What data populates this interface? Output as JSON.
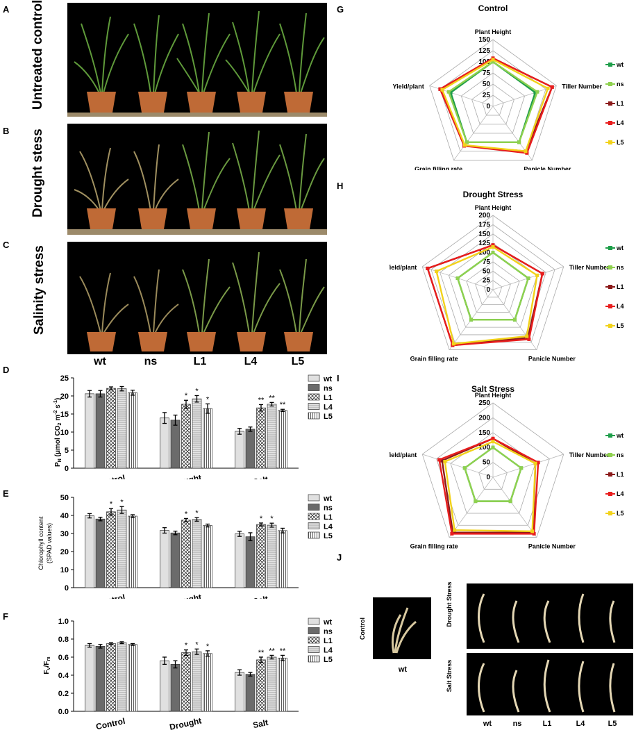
{
  "panels": {
    "A": "A",
    "B": "B",
    "C": "C",
    "D": "D",
    "E": "E",
    "F": "F",
    "G": "G",
    "H": "H",
    "I": "I",
    "J": "J"
  },
  "photos": {
    "A_title": "Untreated control",
    "B_title": "Drought stess",
    "C_title": "Salinity stress",
    "genotypes": [
      "wt",
      "ns",
      "L1",
      "L4",
      "L5"
    ]
  },
  "panel_j": {
    "control_title": "Control",
    "control_label": "wt",
    "drought_title": "Drought Stress",
    "salt_title": "Salt Stress",
    "genotypes": [
      "wt",
      "ns",
      "L1",
      "L4",
      "L5"
    ]
  },
  "colors": {
    "wt": "#1f9e4a",
    "ns": "#8fd14f",
    "L1": "#8b1a1a",
    "L4": "#e81d1d",
    "L5": "#f2d21a"
  },
  "chart_data": [
    {
      "id": "D",
      "type": "bar",
      "ylabel": "PN (μmol CO2 m-2 s-1)",
      "ylabel_parts": {
        "P": "P",
        "N": "N",
        "rest": " (μmol CO",
        "two": "2",
        "m": " m",
        "e1": "-2",
        "s": " s",
        "e2": "-1",
        "close": ")"
      },
      "ylim": [
        0,
        25
      ],
      "yticks": [
        "0",
        "5",
        "10",
        "15",
        "20",
        "25"
      ],
      "categories": [
        "Control",
        "Drought",
        "Salt"
      ],
      "series": [
        {
          "name": "wt",
          "values": [
            20.6,
            13.9,
            10.2
          ],
          "errors": [
            0.9,
            1.5,
            0.8
          ]
        },
        {
          "name": "ns",
          "values": [
            20.6,
            13.3,
            10.8
          ],
          "errors": [
            0.9,
            1.4,
            0.6
          ]
        },
        {
          "name": "L1",
          "values": [
            22.1,
            17.7,
            16.7
          ],
          "errors": [
            0.4,
            1.1,
            0.9
          ]
        },
        {
          "name": "L4",
          "values": [
            22.0,
            19.2,
            17.7
          ],
          "errors": [
            0.6,
            0.9,
            0.5
          ]
        },
        {
          "name": "L5",
          "values": [
            20.9,
            16.5,
            16.0
          ],
          "errors": [
            0.7,
            1.3,
            0.3
          ]
        }
      ],
      "stars": [
        [
          "",
          "",
          "",
          "",
          ""
        ],
        [
          "",
          "",
          "*",
          "*",
          "*"
        ],
        [
          "",
          "",
          "**",
          "**",
          "**"
        ]
      ]
    },
    {
      "id": "E",
      "type": "bar",
      "ylabel_line1": "Chlorophyll content",
      "ylabel_line2": "(SPAD values)",
      "ylim": [
        0,
        50
      ],
      "yticks": [
        "0",
        "10",
        "20",
        "30",
        "40",
        "50"
      ],
      "categories": [
        "Control",
        "Drought",
        "Salt"
      ],
      "series": [
        {
          "name": "wt",
          "values": [
            39.8,
            31.7,
            29.8
          ],
          "errors": [
            1.2,
            1.5,
            1.4
          ]
        },
        {
          "name": "ns",
          "values": [
            38.0,
            30.3,
            28.2
          ],
          "errors": [
            1.0,
            1.0,
            2.2
          ]
        },
        {
          "name": "L1",
          "values": [
            42.0,
            37.4,
            35.0
          ],
          "errors": [
            1.8,
            0.9,
            0.8
          ]
        },
        {
          "name": "L4",
          "values": [
            43.0,
            37.8,
            34.6
          ],
          "errors": [
            1.9,
            1.0,
            1.1
          ]
        },
        {
          "name": "L5",
          "values": [
            39.6,
            34.4,
            31.6
          ],
          "errors": [
            0.8,
            0.8,
            1.3
          ]
        }
      ],
      "stars": [
        [
          "",
          "",
          "*",
          "*",
          ""
        ],
        [
          "",
          "",
          "*",
          "*",
          ""
        ],
        [
          "",
          "",
          "*",
          "*",
          ""
        ]
      ]
    },
    {
      "id": "F",
      "type": "bar",
      "ylabel": "Fv/Fm",
      "ylabel_parts": {
        "F1": "F",
        "v": "v",
        "slash": "/F",
        "m": "m"
      },
      "ylim": [
        0,
        1.0
      ],
      "yticks": [
        "0.0",
        "0.2",
        "0.4",
        "0.6",
        "0.8",
        "1.0"
      ],
      "categories": [
        "Control",
        "Drought",
        "Salt"
      ],
      "series": [
        {
          "name": "wt",
          "values": [
            0.73,
            0.56,
            0.43
          ],
          "errors": [
            0.02,
            0.04,
            0.03
          ]
        },
        {
          "name": "ns",
          "values": [
            0.72,
            0.52,
            0.41
          ],
          "errors": [
            0.02,
            0.04,
            0.02
          ]
        },
        {
          "name": "L1",
          "values": [
            0.75,
            0.65,
            0.57
          ],
          "errors": [
            0.01,
            0.03,
            0.03
          ]
        },
        {
          "name": "L4",
          "values": [
            0.76,
            0.66,
            0.6
          ],
          "errors": [
            0.01,
            0.03,
            0.02
          ]
        },
        {
          "name": "L5",
          "values": [
            0.74,
            0.64,
            0.59
          ],
          "errors": [
            0.01,
            0.03,
            0.03
          ]
        }
      ],
      "stars": [
        [
          "",
          "",
          "",
          "",
          ""
        ],
        [
          "",
          "",
          "*",
          "*",
          "*"
        ],
        [
          "",
          "",
          "**",
          "**",
          "**"
        ]
      ]
    },
    {
      "id": "G",
      "type": "radar",
      "title": "Control",
      "axes": [
        "Plant Height",
        "Tiller Number",
        "Panicle Number",
        "Grain filling rate",
        "Yield/plant"
      ],
      "ticks": [
        "0",
        "25",
        "50",
        "75",
        "100",
        "125",
        "150"
      ],
      "rmax": 150,
      "series": [
        {
          "name": "wt",
          "values": [
            100,
            100,
            100,
            100,
            100
          ]
        },
        {
          "name": "ns",
          "values": [
            100,
            105,
            100,
            100,
            105
          ]
        },
        {
          "name": "L1",
          "values": [
            108,
            140,
            125,
            110,
            125
          ]
        },
        {
          "name": "L4",
          "values": [
            108,
            140,
            130,
            110,
            125
          ]
        },
        {
          "name": "L5",
          "values": [
            105,
            130,
            125,
            108,
            120
          ]
        }
      ]
    },
    {
      "id": "H",
      "type": "radar",
      "title": "Drought Stress",
      "axes": [
        "Plant Height",
        "Tiller Number",
        "Panicle Number",
        "Grain filling rate",
        "Yield/plant"
      ],
      "ticks": [
        "0",
        "25",
        "50",
        "75",
        "100",
        "125",
        "150",
        "175",
        "200"
      ],
      "rmax": 200,
      "series": [
        {
          "name": "wt",
          "values": [
            100,
            100,
            100,
            100,
            100
          ]
        },
        {
          "name": "ns",
          "values": [
            100,
            100,
            100,
            100,
            100
          ]
        },
        {
          "name": "L1",
          "values": [
            120,
            140,
            160,
            185,
            185
          ]
        },
        {
          "name": "L4",
          "values": [
            120,
            140,
            165,
            185,
            185
          ]
        },
        {
          "name": "L5",
          "values": [
            115,
            125,
            155,
            180,
            160
          ]
        }
      ]
    },
    {
      "id": "I",
      "type": "radar",
      "title": "Salt Stress",
      "axes": [
        "Plant Height",
        "Tiller Number",
        "Panicle Number",
        "Grain filling rate",
        "Yield/plant"
      ],
      "ticks": [
        "0",
        "50",
        "100",
        "150",
        "200",
        "250"
      ],
      "rmax": 250,
      "series": [
        {
          "name": "wt",
          "values": [
            100,
            100,
            100,
            100,
            100
          ]
        },
        {
          "name": "ns",
          "values": [
            100,
            100,
            100,
            100,
            100
          ]
        },
        {
          "name": "L1",
          "values": [
            130,
            150,
            230,
            230,
            180
          ]
        },
        {
          "name": "L4",
          "values": [
            130,
            160,
            235,
            235,
            190
          ]
        },
        {
          "name": "L5",
          "values": [
            120,
            150,
            225,
            220,
            170
          ]
        }
      ]
    }
  ]
}
